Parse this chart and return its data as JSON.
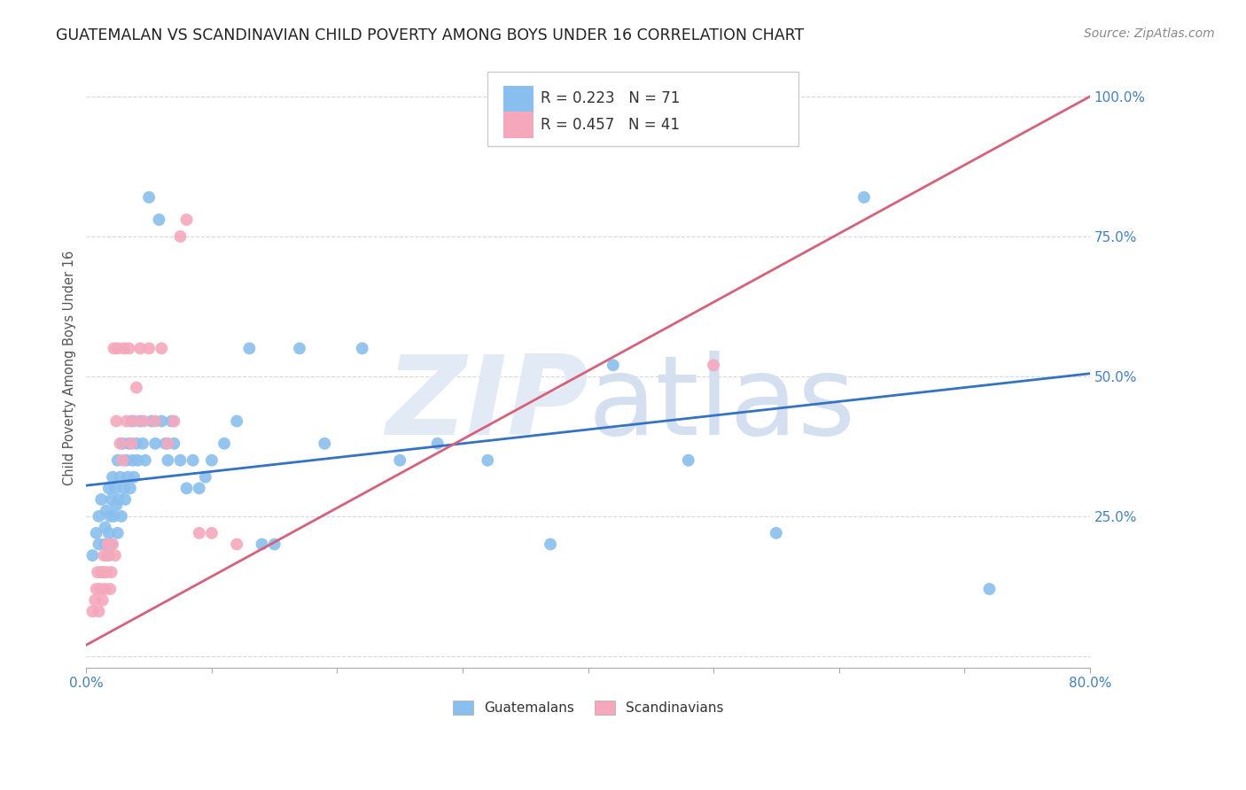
{
  "title": "GUATEMALAN VS SCANDINAVIAN CHILD POVERTY AMONG BOYS UNDER 16 CORRELATION CHART",
  "source": "Source: ZipAtlas.com",
  "ylabel": "Child Poverty Among Boys Under 16",
  "yticks": [
    0.0,
    0.25,
    0.5,
    0.75,
    1.0
  ],
  "ytick_labels": [
    "",
    "25.0%",
    "50.0%",
    "75.0%",
    "100.0%"
  ],
  "legend_line1": "R = 0.223   N = 71",
  "legend_line2": "R = 0.457   N = 41",
  "guatemalan_color": "#89BFEE",
  "scandinavian_color": "#F5A8BC",
  "trend_guatemalan_color": "#3473C1",
  "trend_scandinavian_color": "#D9607A",
  "background_color": "#FFFFFF",
  "watermark_color": "#E2EBF5",
  "title_fontsize": 12.5,
  "axis_label_fontsize": 10.5,
  "tick_fontsize": 11,
  "source_fontsize": 10,
  "guatemalan_x": [
    0.005,
    0.008,
    0.01,
    0.01,
    0.012,
    0.013,
    0.015,
    0.015,
    0.016,
    0.017,
    0.018,
    0.018,
    0.019,
    0.02,
    0.02,
    0.021,
    0.022,
    0.023,
    0.024,
    0.025,
    0.025,
    0.026,
    0.027,
    0.028,
    0.029,
    0.03,
    0.031,
    0.032,
    0.033,
    0.034,
    0.035,
    0.036,
    0.037,
    0.038,
    0.04,
    0.041,
    0.043,
    0.045,
    0.047,
    0.05,
    0.052,
    0.055,
    0.058,
    0.06,
    0.063,
    0.065,
    0.068,
    0.07,
    0.075,
    0.08,
    0.085,
    0.09,
    0.095,
    0.1,
    0.11,
    0.12,
    0.13,
    0.14,
    0.15,
    0.17,
    0.19,
    0.22,
    0.25,
    0.28,
    0.32,
    0.37,
    0.42,
    0.48,
    0.55,
    0.62,
    0.72
  ],
  "guatemalan_y": [
    0.18,
    0.22,
    0.2,
    0.25,
    0.28,
    0.15,
    0.2,
    0.23,
    0.26,
    0.18,
    0.22,
    0.3,
    0.25,
    0.2,
    0.28,
    0.32,
    0.25,
    0.3,
    0.27,
    0.22,
    0.35,
    0.28,
    0.32,
    0.25,
    0.38,
    0.3,
    0.28,
    0.35,
    0.32,
    0.38,
    0.3,
    0.42,
    0.35,
    0.32,
    0.38,
    0.35,
    0.42,
    0.38,
    0.35,
    0.82,
    0.42,
    0.38,
    0.78,
    0.42,
    0.38,
    0.35,
    0.42,
    0.38,
    0.35,
    0.3,
    0.35,
    0.3,
    0.32,
    0.35,
    0.38,
    0.42,
    0.55,
    0.2,
    0.2,
    0.55,
    0.38,
    0.55,
    0.35,
    0.38,
    0.35,
    0.2,
    0.52,
    0.35,
    0.22,
    0.82,
    0.12
  ],
  "scandinavian_x": [
    0.005,
    0.007,
    0.008,
    0.009,
    0.01,
    0.011,
    0.012,
    0.013,
    0.014,
    0.015,
    0.016,
    0.017,
    0.018,
    0.019,
    0.02,
    0.021,
    0.022,
    0.023,
    0.024,
    0.025,
    0.027,
    0.029,
    0.03,
    0.032,
    0.034,
    0.036,
    0.038,
    0.04,
    0.043,
    0.046,
    0.05,
    0.055,
    0.06,
    0.065,
    0.07,
    0.075,
    0.08,
    0.09,
    0.1,
    0.12,
    0.5
  ],
  "scandinavian_y": [
    0.08,
    0.1,
    0.12,
    0.15,
    0.08,
    0.12,
    0.15,
    0.1,
    0.18,
    0.12,
    0.15,
    0.2,
    0.18,
    0.12,
    0.15,
    0.2,
    0.55,
    0.18,
    0.42,
    0.55,
    0.38,
    0.35,
    0.55,
    0.42,
    0.55,
    0.38,
    0.42,
    0.48,
    0.55,
    0.42,
    0.55,
    0.42,
    0.55,
    0.38,
    0.42,
    0.75,
    0.78,
    0.22,
    0.22,
    0.2,
    0.52
  ],
  "xlim": [
    0.0,
    0.8
  ],
  "ylim": [
    -0.02,
    1.05
  ],
  "guatemalan_trend_x": [
    0.0,
    0.8
  ],
  "guatemalan_trend_y": [
    0.305,
    0.505
  ],
  "scandinavian_trend_x": [
    0.0,
    0.8
  ],
  "scandinavian_trend_y": [
    0.02,
    1.0
  ]
}
